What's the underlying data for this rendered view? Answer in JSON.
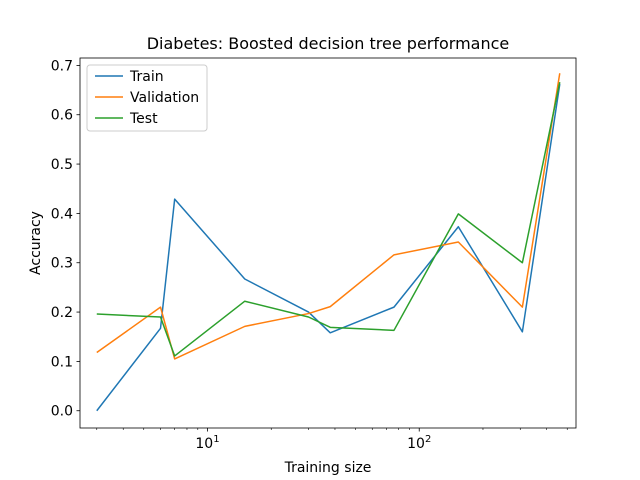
{
  "chart_data": {
    "type": "line",
    "title": "Diabetes: Boosted decision tree performance",
    "xlabel": "Training size",
    "ylabel": "Accuracy",
    "xscale": "log",
    "xlim": [
      2.5,
      550
    ],
    "ylim": [
      -0.035,
      0.715
    ],
    "x_ticks": [
      {
        "value": 10,
        "base": "10",
        "exp": "1"
      },
      {
        "value": 100,
        "base": "10",
        "exp": "2"
      }
    ],
    "y_ticks": [
      {
        "value": 0.0,
        "label": "0.0"
      },
      {
        "value": 0.1,
        "label": "0.1"
      },
      {
        "value": 0.2,
        "label": "0.2"
      },
      {
        "value": 0.3,
        "label": "0.3"
      },
      {
        "value": 0.4,
        "label": "0.4"
      },
      {
        "value": 0.5,
        "label": "0.5"
      },
      {
        "value": 0.6,
        "label": "0.6"
      },
      {
        "value": 0.7,
        "label": "0.7"
      }
    ],
    "x": [
      3,
      6,
      7,
      15,
      30,
      38,
      76,
      153,
      307,
      461
    ],
    "series": [
      {
        "name": "Train",
        "color": "#1f77b4",
        "values": [
          0.0,
          0.167,
          0.429,
          0.267,
          0.2,
          0.158,
          0.21,
          0.373,
          0.16,
          0.662
        ]
      },
      {
        "name": "Validation",
        "color": "#ff7f0e",
        "values": [
          0.118,
          0.21,
          0.105,
          0.171,
          0.197,
          0.211,
          0.316,
          0.342,
          0.21,
          0.684
        ]
      },
      {
        "name": "Test",
        "color": "#2ca02c",
        "values": [
          0.196,
          0.19,
          0.111,
          0.222,
          0.19,
          0.169,
          0.163,
          0.399,
          0.3,
          0.666
        ]
      }
    ],
    "legend": "top-left",
    "grid": false
  }
}
